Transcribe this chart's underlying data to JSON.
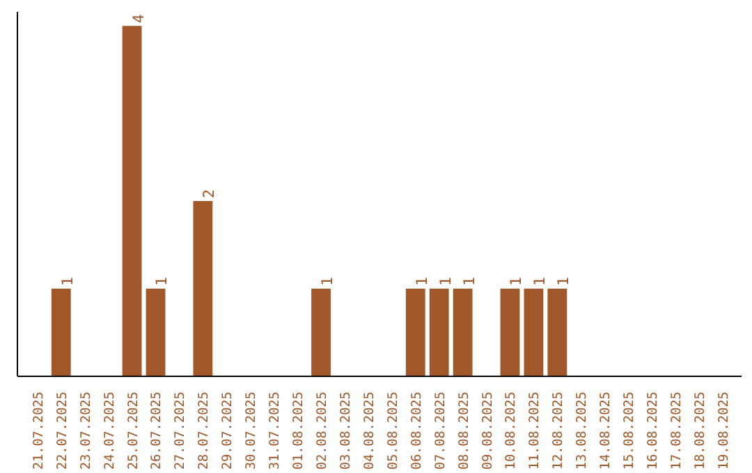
{
  "chart_data": {
    "type": "bar",
    "categories": [
      "21.07.2025",
      "22.07.2025",
      "23.07.2025",
      "24.07.2025",
      "25.07.2025",
      "26.07.2025",
      "27.07.2025",
      "28.07.2025",
      "29.07.2025",
      "30.07.2025",
      "31.07.2025",
      "01.08.2025",
      "02.08.2025",
      "03.08.2025",
      "04.08.2025",
      "05.08.2025",
      "06.08.2025",
      "07.08.2025",
      "08.08.2025",
      "09.08.2025",
      "10.08.2025",
      "11.08.2025",
      "12.08.2025",
      "13.08.2025",
      "14.08.2025",
      "15.08.2025",
      "16.08.2025",
      "17.08.2025",
      "18.08.2025",
      "19.08.2025"
    ],
    "values": [
      0,
      1,
      0,
      0,
      4,
      1,
      0,
      2,
      0,
      0,
      0,
      0,
      1,
      0,
      0,
      0,
      1,
      1,
      1,
      0,
      1,
      1,
      1,
      0,
      0,
      0,
      0,
      0,
      0,
      0
    ],
    "value_labels": [
      null,
      "1",
      null,
      null,
      "4",
      "1",
      null,
      "2",
      null,
      null,
      null,
      null,
      "1",
      null,
      null,
      null,
      "1",
      "1",
      "1",
      null,
      "1",
      "1",
      "1",
      null,
      null,
      null,
      null,
      null,
      null,
      null
    ],
    "color": "#a0582a",
    "tick_labels": "x",
    "grid": false
  }
}
